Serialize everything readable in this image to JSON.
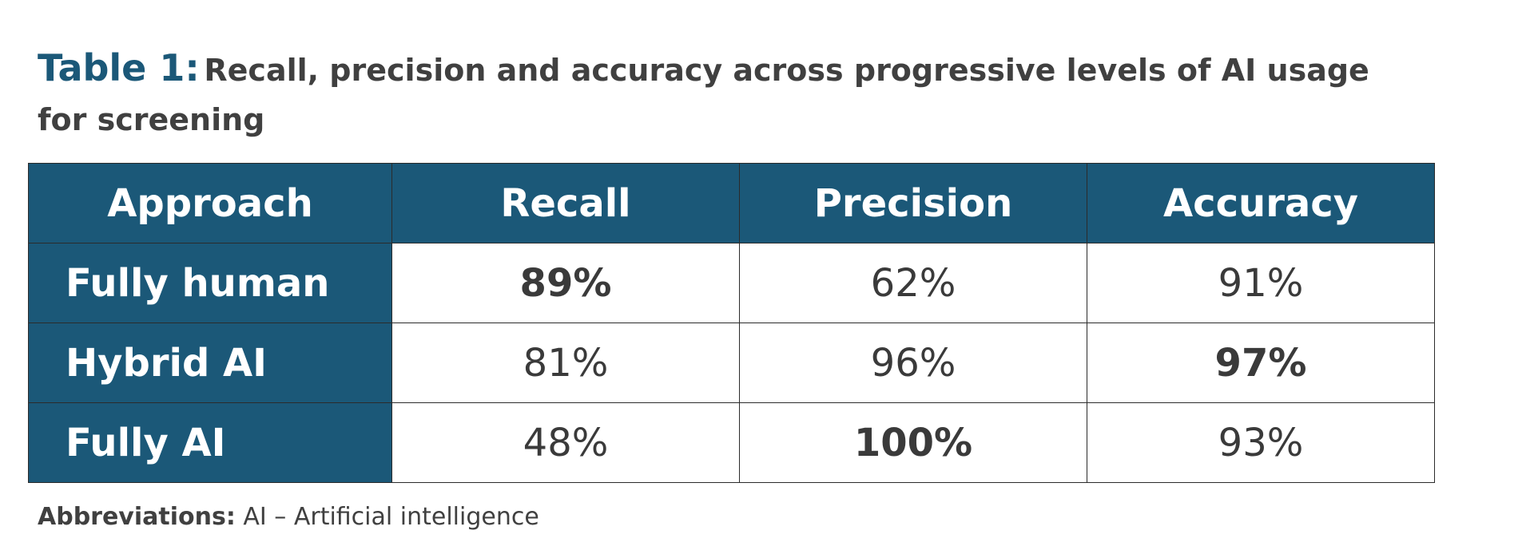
{
  "title": {
    "lead": "Table 1:",
    "text": "Recall, precision and accuracy across progressive levels of AI usage for screening"
  },
  "table": {
    "headers": [
      "Approach",
      "Recall",
      "Precision",
      "Accuracy"
    ],
    "rows": [
      {
        "approach": "Fully human",
        "recall": "89%",
        "precision": "62%",
        "accuracy": "91%"
      },
      {
        "approach": "Hybrid AI",
        "recall": "81%",
        "precision": "96%",
        "accuracy": "97%"
      },
      {
        "approach": "Fully AI",
        "recall": "48%",
        "precision": "100%",
        "accuracy": "93%"
      }
    ]
  },
  "footnote": {
    "label": "Abbreviations:",
    "text": "AI – Artificial intelligence"
  },
  "colors": {
    "header_bg": "#1b5878",
    "title_lead": "#1b5878",
    "text": "#404040"
  }
}
